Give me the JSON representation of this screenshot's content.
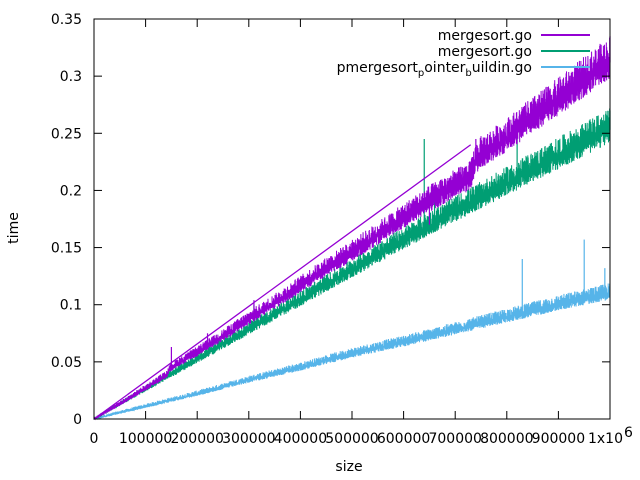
{
  "chart_data": {
    "type": "line",
    "title": "",
    "xlabel": "size",
    "ylabel": "time",
    "xlim": [
      0,
      1000000
    ],
    "ylim": [
      0,
      0.35
    ],
    "x_ticks": [
      {
        "value": 0,
        "label": "0"
      },
      {
        "value": 100000,
        "label": "100000"
      },
      {
        "value": 200000,
        "label": "200000"
      },
      {
        "value": 300000,
        "label": "300000"
      },
      {
        "value": 400000,
        "label": "400000"
      },
      {
        "value": 500000,
        "label": "500000"
      },
      {
        "value": 600000,
        "label": "600000"
      },
      {
        "value": 700000,
        "label": "700000"
      },
      {
        "value": 800000,
        "label": "800000"
      },
      {
        "value": 900000,
        "label": "900000"
      },
      {
        "value": 1000000,
        "label": "1x10"
      }
    ],
    "x_exponent_label": "6",
    "y_ticks": [
      {
        "value": 0,
        "label": "0"
      },
      {
        "value": 0.05,
        "label": "0.05"
      },
      {
        "value": 0.1,
        "label": "0.1"
      },
      {
        "value": 0.15,
        "label": "0.15"
      },
      {
        "value": 0.2,
        "label": "0.2"
      },
      {
        "value": 0.25,
        "label": "0.25"
      },
      {
        "value": 0.3,
        "label": "0.3"
      },
      {
        "value": 0.35,
        "label": "0.35"
      }
    ],
    "grid": false,
    "legend_position": "top-right",
    "legend": [
      {
        "main": "mergesort.go",
        "subs": []
      },
      {
        "main": "mergesort.go",
        "subs": []
      },
      {
        "main": "pmergesort",
        "subs": [
          "p",
          "ointer",
          "b",
          "uildin.go"
        ]
      }
    ],
    "series": [
      {
        "name": "mergesort.go",
        "color": "#9400d3",
        "x": [
          0,
          50000,
          100000,
          140000,
          150000,
          200000,
          210000,
          250000,
          300000,
          350000,
          400000,
          450000,
          500000,
          550000,
          600000,
          650000,
          700000,
          730000,
          740000,
          750000,
          800000,
          850000,
          900000,
          950000,
          1000000
        ],
        "y": [
          0,
          0.013,
          0.027,
          0.038,
          0.045,
          0.058,
          0.061,
          0.072,
          0.087,
          0.101,
          0.116,
          0.131,
          0.145,
          0.16,
          0.175,
          0.19,
          0.203,
          0.21,
          0.225,
          0.23,
          0.245,
          0.262,
          0.278,
          0.295,
          0.312
        ],
        "peaks": [
          {
            "x": 150000,
            "y": 0.063
          },
          {
            "x": 220000,
            "y": 0.075
          },
          {
            "x": 310000,
            "y": 0.104
          },
          {
            "x": 490000,
            "y": 0.14
          },
          {
            "x": 650000,
            "y": 0.17
          },
          {
            "x": 740000,
            "y": 0.245
          },
          {
            "x": 860000,
            "y": 0.28
          },
          {
            "x": 1000000,
            "y": 0.335
          }
        ],
        "note": "a second straight trace runs from (0,0) to (730000,0.24)"
      },
      {
        "name": "mergesort.go",
        "color": "#009e73",
        "x": [
          0,
          100000,
          200000,
          300000,
          400000,
          500000,
          600000,
          700000,
          800000,
          900000,
          1000000
        ],
        "y": [
          0,
          0.026,
          0.052,
          0.078,
          0.104,
          0.13,
          0.156,
          0.181,
          0.205,
          0.229,
          0.253
        ],
        "peaks": [
          {
            "x": 310000,
            "y": 0.1
          },
          {
            "x": 640000,
            "y": 0.245
          },
          {
            "x": 660000,
            "y": 0.2
          },
          {
            "x": 820000,
            "y": 0.25
          },
          {
            "x": 1000000,
            "y": 0.27
          }
        ]
      },
      {
        "name": "pmergesort_pointer_buildin.go",
        "color": "#56b4e9",
        "x": [
          0,
          100000,
          200000,
          300000,
          400000,
          500000,
          600000,
          700000,
          800000,
          900000,
          1000000
        ],
        "y": [
          0,
          0.011,
          0.022,
          0.034,
          0.045,
          0.057,
          0.067,
          0.078,
          0.089,
          0.1,
          0.11
        ],
        "peaks": [
          {
            "x": 830000,
            "y": 0.14
          },
          {
            "x": 950000,
            "y": 0.157
          },
          {
            "x": 990000,
            "y": 0.132
          }
        ]
      }
    ]
  }
}
